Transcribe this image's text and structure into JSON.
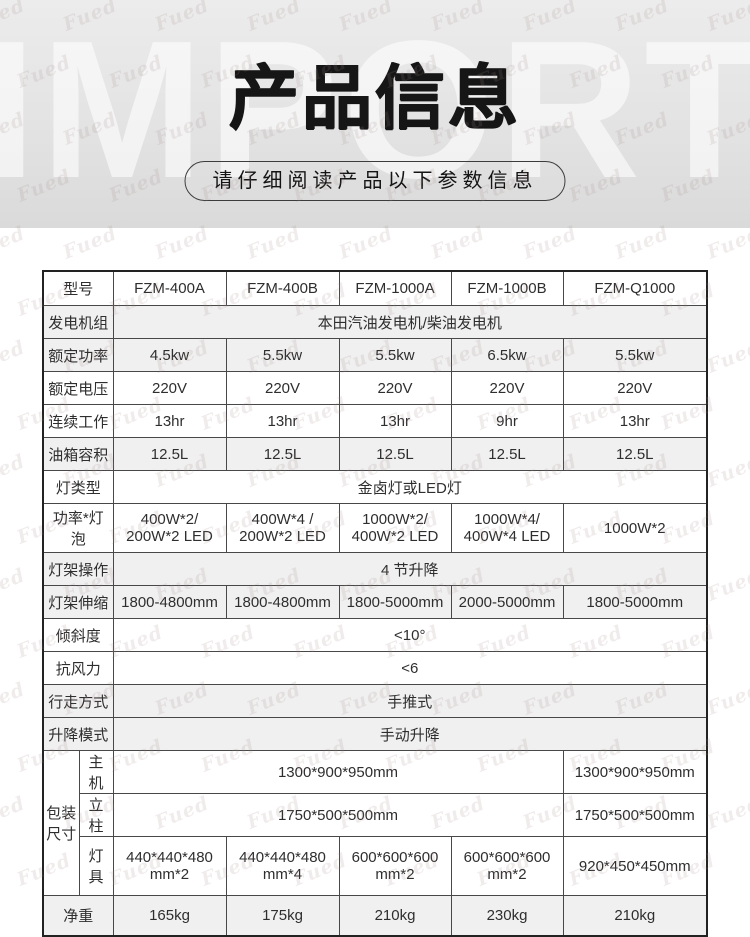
{
  "hero": {
    "backdrop_word": "IMPORT",
    "title": "产品信息",
    "subtitle": "请仔细阅读产品以下参数信息"
  },
  "watermark": {
    "scribble": "Fued"
  },
  "table": {
    "header": {
      "label": "型号",
      "models": [
        "FZM-400A",
        "FZM-400B",
        "FZM-1000A",
        "FZM-1000B",
        "FZM-Q1000"
      ]
    },
    "generator": {
      "label": "发电机组",
      "value": "本田汽油发电机/柴油发电机"
    },
    "rated_power": {
      "label": "额定功率",
      "values": [
        "4.5kw",
        "5.5kw",
        "5.5kw",
        "6.5kw",
        "5.5kw"
      ]
    },
    "rated_voltage": {
      "label": "额定电压",
      "values": [
        "220V",
        "220V",
        "220V",
        "220V",
        "220V"
      ]
    },
    "continuous_work": {
      "label": "连续工作",
      "values": [
        "13hr",
        "13hr",
        "13hr",
        "9hr",
        "13hr"
      ]
    },
    "tank_capacity": {
      "label": "油箱容积",
      "values": [
        "12.5L",
        "12.5L",
        "12.5L",
        "12.5L",
        "12.5L"
      ]
    },
    "lamp_type": {
      "label": "灯类型",
      "value": "金卤灯或LED灯"
    },
    "power_bulb": {
      "label": "功率*灯泡",
      "values": [
        "400W*2/\n200W*2 LED",
        "400W*4 /\n200W*2 LED",
        "1000W*2/\n400W*2 LED",
        "1000W*4/\n400W*4 LED",
        "1000W*2"
      ]
    },
    "mast_operation": {
      "label": "灯架操作",
      "value": "4 节升降"
    },
    "mast_extension": {
      "label": "灯架伸缩",
      "values": [
        "1800-4800mm",
        "1800-4800mm",
        "1800-5000mm",
        "2000-5000mm",
        "1800-5000mm"
      ]
    },
    "tilt": {
      "label": "倾斜度",
      "value": "<10°"
    },
    "wind_resistance": {
      "label": "抗风力",
      "value": "<6"
    },
    "moving_mode": {
      "label": "行走方式",
      "value": "手推式"
    },
    "lift_mode": {
      "label": "升降模式",
      "value": "手动升降"
    },
    "packaging": {
      "group_label": "包装\n尺寸",
      "host": {
        "label": "主机",
        "value_span": "1300*900*950mm",
        "value_last": "1300*900*950mm"
      },
      "column": {
        "label": "立柱",
        "value_span": "1750*500*500mm",
        "value_last": "1750*500*500mm"
      },
      "lamps": {
        "label": "灯具",
        "values": [
          "440*440*480\nmm*2",
          "440*440*480\nmm*4",
          "600*600*600\nmm*2",
          "600*600*600\nmm*2",
          "920*450*450mm"
        ]
      }
    },
    "net_weight": {
      "label": "净重",
      "values": [
        "165kg",
        "175kg",
        "210kg",
        "230kg",
        "210kg"
      ]
    }
  }
}
